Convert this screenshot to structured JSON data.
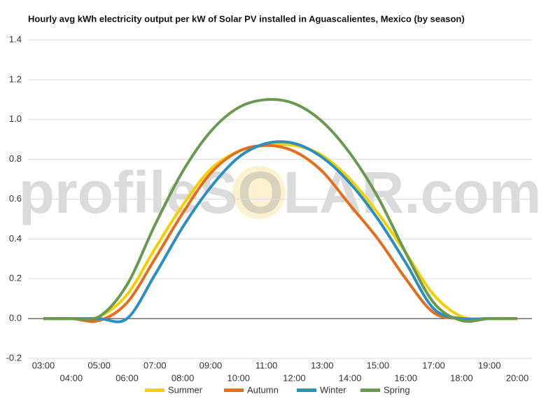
{
  "chart_data": {
    "type": "line",
    "title": "Hourly avg kWh electricity output per kW of Solar PV installed in Aguascalientes, Mexico (by season)",
    "watermark": "profileSOLAR.com",
    "categories": [
      "03:00",
      "04:00",
      "05:00",
      "06:00",
      "07:00",
      "08:00",
      "09:00",
      "10:00",
      "11:00",
      "12:00",
      "13:00",
      "14:00",
      "15:00",
      "16:00",
      "17:00",
      "18:00",
      "19:00",
      "20:00"
    ],
    "series": [
      {
        "name": "Summer",
        "color": "#f5d000",
        "values": [
          0,
          0,
          0.01,
          0.12,
          0.35,
          0.57,
          0.75,
          0.84,
          0.87,
          0.87,
          0.82,
          0.7,
          0.53,
          0.33,
          0.12,
          0.01,
          0,
          0
        ]
      },
      {
        "name": "Autumn",
        "color": "#e36f1e",
        "values": [
          0,
          0,
          -0.01,
          0.08,
          0.3,
          0.53,
          0.73,
          0.84,
          0.87,
          0.84,
          0.74,
          0.57,
          0.4,
          0.2,
          0.03,
          0,
          0,
          0
        ]
      },
      {
        "name": "Winter",
        "color": "#2a8fc1",
        "values": [
          0,
          0,
          0,
          0,
          0.22,
          0.46,
          0.66,
          0.81,
          0.88,
          0.88,
          0.81,
          0.68,
          0.5,
          0.28,
          0.05,
          0,
          0,
          0
        ]
      },
      {
        "name": "Spring",
        "color": "#6a9a4f",
        "values": [
          0,
          0,
          0.01,
          0.17,
          0.47,
          0.74,
          0.94,
          1.06,
          1.1,
          1.08,
          0.99,
          0.83,
          0.61,
          0.33,
          0.08,
          -0.01,
          0,
          0
        ]
      }
    ],
    "ylim": [
      -0.2,
      1.4
    ],
    "yticks": [
      -0.2,
      {
        "value": 0,
        "label": "0.0"
      },
      0.2,
      0.4,
      0.6,
      0.8,
      {
        "value": 1,
        "label": "1.0"
      },
      1.2,
      1.4
    ],
    "grid": true,
    "legend": "bottom"
  }
}
